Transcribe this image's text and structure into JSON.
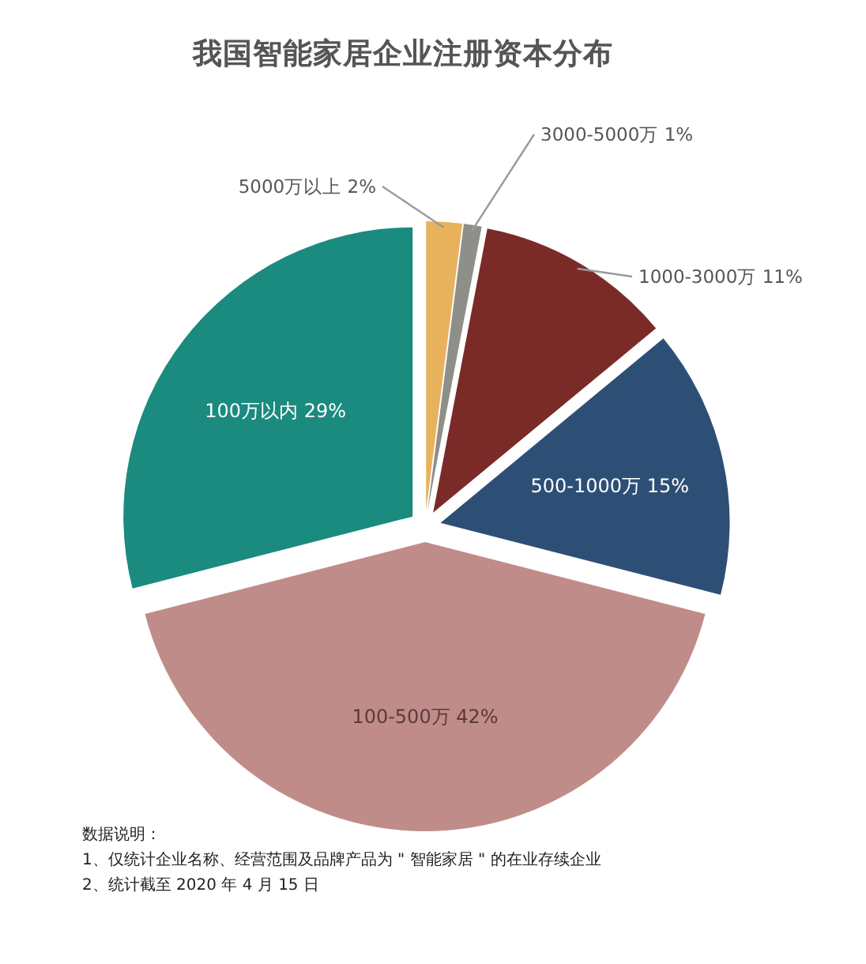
{
  "chart_data": {
    "type": "pie",
    "title": "我国智能家居企业注册资本分布",
    "categories": [
      "5000万以上",
      "3000-5000万",
      "1000-3000万",
      "500-1000万",
      "100-500万",
      "100万以内"
    ],
    "values": [
      2,
      1,
      11,
      15,
      42,
      29
    ],
    "value_labels": [
      "2%",
      "1%",
      "11%",
      "15%",
      "42%",
      "29%"
    ],
    "colors": [
      "#e8b25c",
      "#8f8f8a",
      "#7a2b28",
      "#2e4f75",
      "#c08c89",
      "#1b8a7f"
    ],
    "annotations": [
      "数据说明：",
      "1、仅统计企业名称、经营范围及品牌产品为 \" 智能家居 \" 的在业存续企业",
      "2、统计截至 2020 年 4 月 15 日"
    ]
  }
}
